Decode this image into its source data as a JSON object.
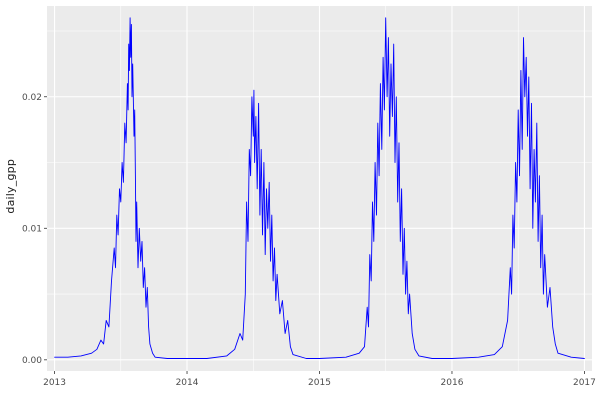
{
  "figure": {
    "background": "#FFFFFF",
    "panel_background": "#EBEBEB",
    "grid_color": "#FFFFFF",
    "line_color": "#0000FF",
    "axis_text_color": "#4D4D4D",
    "tick_mark_color": "#333333"
  },
  "chart_data": {
    "type": "line",
    "title": "",
    "xlabel": "",
    "ylabel": "daily_gpp",
    "legend": "none",
    "grid": "on",
    "xlim": [
      2012.943,
      2017.057
    ],
    "ylim": [
      -0.00085,
      0.0269
    ],
    "x_ticks": [
      2013,
      2014,
      2015,
      2016,
      2017
    ],
    "x_tick_labels": [
      "2013",
      "2014",
      "2015",
      "2016",
      "2017"
    ],
    "x_minor_ticks": [
      2013.5,
      2014.5,
      2015.5,
      2016.5
    ],
    "y_ticks": [
      0.0,
      0.01,
      0.02
    ],
    "y_tick_labels": [
      "0.00",
      "0.01",
      "0.02"
    ],
    "y_minor_ticks": [
      0.005,
      0.015,
      0.025
    ],
    "series": [
      {
        "name": "daily_gpp",
        "points": [
          [
            2013.0,
            0.0002
          ],
          [
            2013.1,
            0.0002
          ],
          [
            2013.2,
            0.0003
          ],
          [
            2013.28,
            0.0005
          ],
          [
            2013.32,
            0.0008
          ],
          [
            2013.35,
            0.0015
          ],
          [
            2013.37,
            0.0012
          ],
          [
            2013.39,
            0.003
          ],
          [
            2013.41,
            0.0025
          ],
          [
            2013.43,
            0.006
          ],
          [
            2013.45,
            0.0085
          ],
          [
            2013.46,
            0.007
          ],
          [
            2013.47,
            0.011
          ],
          [
            2013.48,
            0.0095
          ],
          [
            2013.49,
            0.013
          ],
          [
            2013.5,
            0.012
          ],
          [
            2013.51,
            0.015
          ],
          [
            2013.52,
            0.0135
          ],
          [
            2013.53,
            0.018
          ],
          [
            2013.54,
            0.0165
          ],
          [
            2013.55,
            0.021
          ],
          [
            2013.555,
            0.019
          ],
          [
            2013.56,
            0.024
          ],
          [
            2013.565,
            0.022
          ],
          [
            2013.57,
            0.026
          ],
          [
            2013.575,
            0.023
          ],
          [
            2013.58,
            0.0255
          ],
          [
            2013.585,
            0.02
          ],
          [
            2013.59,
            0.0225
          ],
          [
            2013.6,
            0.017
          ],
          [
            2013.605,
            0.019
          ],
          [
            2013.61,
            0.014
          ],
          [
            2013.615,
            0.009
          ],
          [
            2013.62,
            0.012
          ],
          [
            2013.63,
            0.007
          ],
          [
            2013.64,
            0.01
          ],
          [
            2013.65,
            0.0075
          ],
          [
            2013.66,
            0.009
          ],
          [
            2013.67,
            0.0055
          ],
          [
            2013.68,
            0.007
          ],
          [
            2013.69,
            0.004
          ],
          [
            2013.7,
            0.0055
          ],
          [
            2013.71,
            0.0025
          ],
          [
            2013.72,
            0.0012
          ],
          [
            2013.74,
            0.0005
          ],
          [
            2013.76,
            0.0002
          ],
          [
            2013.85,
            0.0001
          ],
          [
            2013.95,
            0.0001
          ],
          [
            2014.05,
            0.0001
          ],
          [
            2014.15,
            0.0001
          ],
          [
            2014.3,
            0.0003
          ],
          [
            2014.36,
            0.0008
          ],
          [
            2014.4,
            0.002
          ],
          [
            2014.42,
            0.0015
          ],
          [
            2014.44,
            0.005
          ],
          [
            2014.45,
            0.012
          ],
          [
            2014.46,
            0.009
          ],
          [
            2014.47,
            0.016
          ],
          [
            2014.48,
            0.014
          ],
          [
            2014.49,
            0.02
          ],
          [
            2014.5,
            0.017
          ],
          [
            2014.505,
            0.0205
          ],
          [
            2014.51,
            0.015
          ],
          [
            2014.52,
            0.0185
          ],
          [
            2014.53,
            0.013
          ],
          [
            2014.54,
            0.0195
          ],
          [
            2014.55,
            0.011
          ],
          [
            2014.56,
            0.016
          ],
          [
            2014.57,
            0.0095
          ],
          [
            2014.58,
            0.015
          ],
          [
            2014.59,
            0.008
          ],
          [
            2014.6,
            0.013
          ],
          [
            2014.61,
            0.01
          ],
          [
            2014.62,
            0.0135
          ],
          [
            2014.63,
            0.0075
          ],
          [
            2014.64,
            0.011
          ],
          [
            2014.65,
            0.006
          ],
          [
            2014.66,
            0.0085
          ],
          [
            2014.67,
            0.0045
          ],
          [
            2014.68,
            0.0065
          ],
          [
            2014.7,
            0.0035
          ],
          [
            2014.72,
            0.0045
          ],
          [
            2014.74,
            0.002
          ],
          [
            2014.76,
            0.003
          ],
          [
            2014.78,
            0.001
          ],
          [
            2014.8,
            0.0004
          ],
          [
            2014.9,
            0.0001
          ],
          [
            2015.0,
            0.0001
          ],
          [
            2015.2,
            0.0002
          ],
          [
            2015.3,
            0.0005
          ],
          [
            2015.34,
            0.001
          ],
          [
            2015.36,
            0.004
          ],
          [
            2015.37,
            0.0025
          ],
          [
            2015.38,
            0.008
          ],
          [
            2015.39,
            0.006
          ],
          [
            2015.4,
            0.012
          ],
          [
            2015.41,
            0.009
          ],
          [
            2015.42,
            0.015
          ],
          [
            2015.43,
            0.011
          ],
          [
            2015.44,
            0.018
          ],
          [
            2015.45,
            0.014
          ],
          [
            2015.46,
            0.021
          ],
          [
            2015.47,
            0.016
          ],
          [
            2015.48,
            0.023
          ],
          [
            2015.49,
            0.019
          ],
          [
            2015.5,
            0.026
          ],
          [
            2015.51,
            0.02
          ],
          [
            2015.52,
            0.0245
          ],
          [
            2015.53,
            0.017
          ],
          [
            2015.54,
            0.0225
          ],
          [
            2015.55,
            0.0185
          ],
          [
            2015.56,
            0.024
          ],
          [
            2015.57,
            0.015
          ],
          [
            2015.58,
            0.02
          ],
          [
            2015.59,
            0.012
          ],
          [
            2015.6,
            0.0165
          ],
          [
            2015.61,
            0.009
          ],
          [
            2015.62,
            0.013
          ],
          [
            2015.63,
            0.0065
          ],
          [
            2015.64,
            0.01
          ],
          [
            2015.65,
            0.005
          ],
          [
            2015.66,
            0.0075
          ],
          [
            2015.67,
            0.0035
          ],
          [
            2015.68,
            0.005
          ],
          [
            2015.7,
            0.002
          ],
          [
            2015.72,
            0.0008
          ],
          [
            2015.75,
            0.0003
          ],
          [
            2015.85,
            0.0001
          ],
          [
            2016.0,
            0.0001
          ],
          [
            2016.2,
            0.0002
          ],
          [
            2016.32,
            0.0004
          ],
          [
            2016.38,
            0.001
          ],
          [
            2016.42,
            0.003
          ],
          [
            2016.44,
            0.007
          ],
          [
            2016.45,
            0.005
          ],
          [
            2016.46,
            0.011
          ],
          [
            2016.47,
            0.0085
          ],
          [
            2016.48,
            0.015
          ],
          [
            2016.49,
            0.012
          ],
          [
            2016.5,
            0.019
          ],
          [
            2016.51,
            0.014
          ],
          [
            2016.52,
            0.022
          ],
          [
            2016.53,
            0.016
          ],
          [
            2016.54,
            0.0245
          ],
          [
            2016.55,
            0.02
          ],
          [
            2016.56,
            0.023
          ],
          [
            2016.57,
            0.017
          ],
          [
            2016.58,
            0.0215
          ],
          [
            2016.59,
            0.013
          ],
          [
            2016.6,
            0.0195
          ],
          [
            2016.61,
            0.01
          ],
          [
            2016.62,
            0.016
          ],
          [
            2016.63,
            0.012
          ],
          [
            2016.64,
            0.018
          ],
          [
            2016.65,
            0.009
          ],
          [
            2016.66,
            0.014
          ],
          [
            2016.67,
            0.007
          ],
          [
            2016.68,
            0.011
          ],
          [
            2016.69,
            0.005
          ],
          [
            2016.7,
            0.008
          ],
          [
            2016.72,
            0.004
          ],
          [
            2016.74,
            0.0055
          ],
          [
            2016.76,
            0.0025
          ],
          [
            2016.78,
            0.0012
          ],
          [
            2016.8,
            0.0005
          ],
          [
            2016.9,
            0.0002
          ],
          [
            2017.0,
            0.0001
          ]
        ]
      }
    ]
  }
}
